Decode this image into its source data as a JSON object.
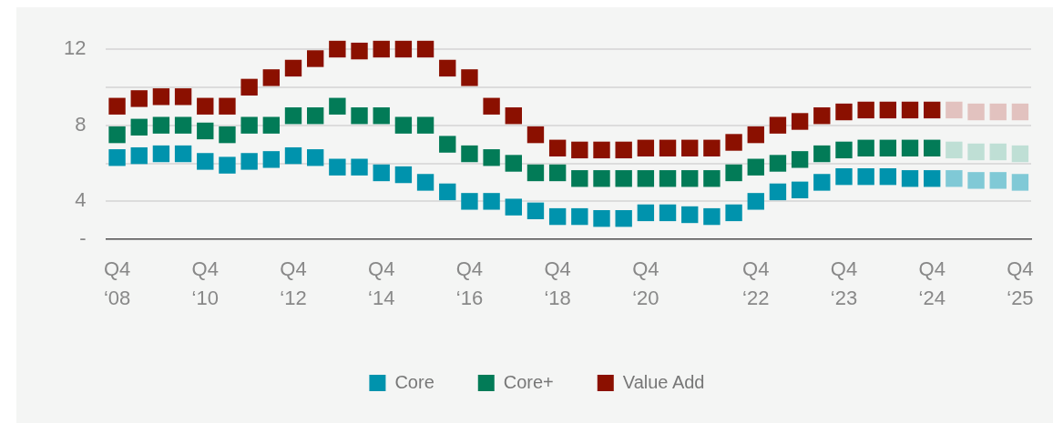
{
  "chart_data": {
    "type": "scatter",
    "marker": "square",
    "grid": "y",
    "legend": "bottom",
    "categories": [
      "Q4 ‘08",
      null,
      null,
      null,
      "Q4 ‘10",
      null,
      null,
      null,
      "Q4 ‘12",
      null,
      null,
      null,
      "Q4 ‘14",
      null,
      null,
      null,
      "Q4 ‘16",
      null,
      null,
      null,
      "Q4 ‘18",
      null,
      null,
      null,
      "Q4 ‘20",
      null,
      null,
      null,
      null,
      "Q4 ‘22",
      null,
      null,
      null,
      "Q4 ‘23",
      null,
      null,
      null,
      "Q4 ‘24",
      null,
      null,
      null,
      "Q4 ‘25"
    ],
    "ylim": [
      2,
      12
    ],
    "yticks": [
      {
        "value": 2,
        "label": "-"
      },
      4,
      {
        "value": 6,
        "label": null
      },
      8,
      {
        "value": 10,
        "label": null
      },
      12
    ],
    "series": [
      {
        "name": "Core",
        "color": "#0093ad",
        "colors": [
          "#0093ad",
          "#0093ad",
          "#0093ad",
          "#0093ad",
          "#0093ad",
          "#0093ad",
          "#0093ad",
          "#0093ad",
          "#0093ad",
          "#0093ad",
          "#0093ad",
          "#0093ad",
          "#0093ad",
          "#0093ad",
          "#0093ad",
          "#0093ad",
          "#0093ad",
          "#0093ad",
          "#0093ad",
          "#0093ad",
          "#0093ad",
          "#0093ad",
          "#0093ad",
          "#0093ad",
          "#0093ad",
          "#0093ad",
          "#0093ad",
          "#0093ad",
          "#0093ad",
          "#0093ad",
          "#0093ad",
          "#0093ad",
          "#0093ad",
          "#0093ad",
          "#0093ad",
          "#0093ad",
          "#0093ad",
          "#0093ad",
          "#80c9d6",
          "#80c9d6",
          "#80c9d6",
          "#80c9d6"
        ],
        "values": [
          6.3,
          6.4,
          6.5,
          6.5,
          6.1,
          5.9,
          6.1,
          6.2,
          6.4,
          6.3,
          5.8,
          5.8,
          5.5,
          5.4,
          5.0,
          4.5,
          4.0,
          4.0,
          3.7,
          3.5,
          3.2,
          3.2,
          3.1,
          3.1,
          3.4,
          3.4,
          3.3,
          3.2,
          3.4,
          4.0,
          4.5,
          4.6,
          5.0,
          5.3,
          5.3,
          5.3,
          5.2,
          5.2,
          5.2,
          5.1,
          5.1,
          5.0
        ]
      },
      {
        "name": "Core+",
        "color": "#027b57",
        "colors": [
          "#027b57",
          "#027b57",
          "#027b57",
          "#027b57",
          "#027b57",
          "#027b57",
          "#027b57",
          "#027b57",
          "#027b57",
          "#027b57",
          "#027b57",
          "#027b57",
          "#027b57",
          "#027b57",
          "#027b57",
          "#027b57",
          "#027b57",
          "#027b57",
          "#027b57",
          "#027b57",
          "#027b57",
          "#027b57",
          "#027b57",
          "#027b57",
          "#027b57",
          "#027b57",
          "#027b57",
          "#027b57",
          "#027b57",
          "#027b57",
          "#027b57",
          "#027b57",
          "#027b57",
          "#027b57",
          "#027b57",
          "#027b57",
          "#027b57",
          "#027b57",
          "#bfdfd5",
          "#bfdfd5",
          "#bfdfd5",
          "#bfdfd5"
        ],
        "values": [
          7.5,
          7.9,
          8.0,
          8.0,
          7.7,
          7.5,
          8.0,
          8.0,
          8.5,
          8.5,
          9.0,
          8.5,
          8.5,
          8.0,
          8.0,
          7.0,
          6.5,
          6.3,
          6.0,
          5.5,
          5.5,
          5.2,
          5.2,
          5.2,
          5.2,
          5.2,
          5.2,
          5.2,
          5.5,
          5.8,
          6.0,
          6.2,
          6.5,
          6.7,
          6.8,
          6.8,
          6.8,
          6.8,
          6.7,
          6.6,
          6.6,
          6.5
        ]
      },
      {
        "name": "Value Add",
        "color": "#8b1000",
        "colors": [
          "#8b1000",
          "#8b1000",
          "#8b1000",
          "#8b1000",
          "#8b1000",
          "#8b1000",
          "#8b1000",
          "#8b1000",
          "#8b1000",
          "#8b1000",
          "#8b1000",
          "#8b1000",
          "#8b1000",
          "#8b1000",
          "#8b1000",
          "#8b1000",
          "#8b1000",
          "#8b1000",
          "#8b1000",
          "#8b1000",
          "#8b1000",
          "#8b1000",
          "#8b1000",
          "#8b1000",
          "#8b1000",
          "#8b1000",
          "#8b1000",
          "#8b1000",
          "#8b1000",
          "#8b1000",
          "#8b1000",
          "#8b1000",
          "#8b1000",
          "#8b1000",
          "#8b1000",
          "#8b1000",
          "#8b1000",
          "#8b1000",
          "#e2c2bf",
          "#e2c2bf",
          "#e2c2bf",
          "#e2c2bf"
        ],
        "values": [
          9.0,
          9.4,
          9.5,
          9.5,
          9.0,
          9.0,
          10.0,
          10.5,
          11.0,
          11.5,
          12.0,
          11.9,
          12.0,
          12.0,
          12.0,
          11.0,
          10.5,
          9.0,
          8.5,
          7.5,
          6.8,
          6.7,
          6.7,
          6.7,
          6.8,
          6.8,
          6.8,
          6.8,
          7.1,
          7.5,
          8.0,
          8.2,
          8.5,
          8.7,
          8.8,
          8.8,
          8.8,
          8.8,
          8.8,
          8.7,
          8.7,
          8.7
        ]
      }
    ]
  }
}
